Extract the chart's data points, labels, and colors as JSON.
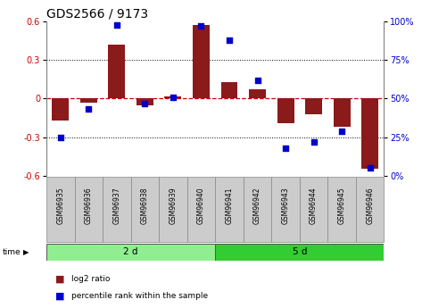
{
  "title": "GDS2566 / 9173",
  "samples": [
    "GSM96935",
    "GSM96936",
    "GSM96937",
    "GSM96938",
    "GSM96939",
    "GSM96940",
    "GSM96941",
    "GSM96942",
    "GSM96943",
    "GSM96944",
    "GSM96945",
    "GSM96946"
  ],
  "log2_ratio": [
    -0.17,
    -0.03,
    0.42,
    -0.05,
    0.02,
    0.57,
    0.13,
    0.07,
    -0.19,
    -0.12,
    -0.22,
    -0.55
  ],
  "percentile": [
    25,
    43,
    98,
    47,
    51,
    97,
    88,
    62,
    18,
    22,
    29,
    5
  ],
  "groups": [
    {
      "label": "2 d",
      "start": 0,
      "end": 6,
      "color": "#90EE90"
    },
    {
      "label": "5 d",
      "start": 6,
      "end": 12,
      "color": "#32CD32"
    }
  ],
  "ylim_left": [
    -0.6,
    0.6
  ],
  "ylim_right": [
    0,
    100
  ],
  "yticks_left": [
    -0.6,
    -0.3,
    0.0,
    0.3,
    0.6
  ],
  "yticks_right": [
    0,
    25,
    50,
    75,
    100
  ],
  "bar_color": "#8B1A1A",
  "dot_color": "#0000CD",
  "hline_color": "#CC0000",
  "grid_color": "#000000",
  "title_fontsize": 10,
  "tick_fontsize": 7,
  "label_fontsize": 7
}
